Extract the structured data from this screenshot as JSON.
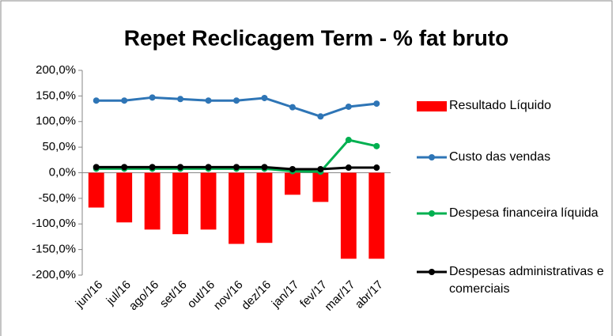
{
  "chart_data": {
    "type": "combo",
    "title": "Repet Reclicagem Term -  % fat bruto",
    "categories": [
      "jun/16",
      "jul/16",
      "ago/16",
      "set/16",
      "out/16",
      "nov/16",
      "dez/16",
      "jan/17",
      "fev/17",
      "mar/17",
      "abr/17"
    ],
    "ylim": [
      -200,
      200
    ],
    "yticks": [
      {
        "value": -200,
        "label": "-200,0%"
      },
      {
        "value": -150,
        "label": "-150,0%"
      },
      {
        "value": -100,
        "label": "-100,0%"
      },
      {
        "value": -50,
        "label": "-50,0%"
      },
      {
        "value": 0,
        "label": "0,0%"
      },
      {
        "value": 50,
        "label": "50,0%"
      },
      {
        "value": 100,
        "label": "100,0%"
      },
      {
        "value": 150,
        "label": "150,0%"
      },
      {
        "value": 200,
        "label": "200,0%"
      }
    ],
    "grid": false,
    "legend": "right",
    "series": [
      {
        "name": "Resultado Líquido",
        "type": "bar",
        "color": "#ff0000",
        "values": [
          -68,
          -97,
          -111,
          -120,
          -111,
          -139,
          -137,
          -43,
          -57,
          -168,
          -168
        ]
      },
      {
        "name": "Custo das vendas",
        "type": "line",
        "color": "#2e75b6",
        "values": [
          141,
          141,
          147,
          144,
          141,
          141,
          146,
          128,
          110,
          129,
          135
        ]
      },
      {
        "name": "Despesa financeira líquida",
        "type": "line",
        "color": "#00b050",
        "values": [
          8,
          8,
          8,
          8,
          8,
          8,
          8,
          3,
          2,
          64,
          52
        ]
      },
      {
        "name": "Despesas administrativas e comerciais",
        "type": "line",
        "color": "#000000",
        "values": [
          11,
          11,
          11,
          11,
          11,
          11,
          11,
          7,
          7,
          10,
          10
        ]
      }
    ]
  }
}
